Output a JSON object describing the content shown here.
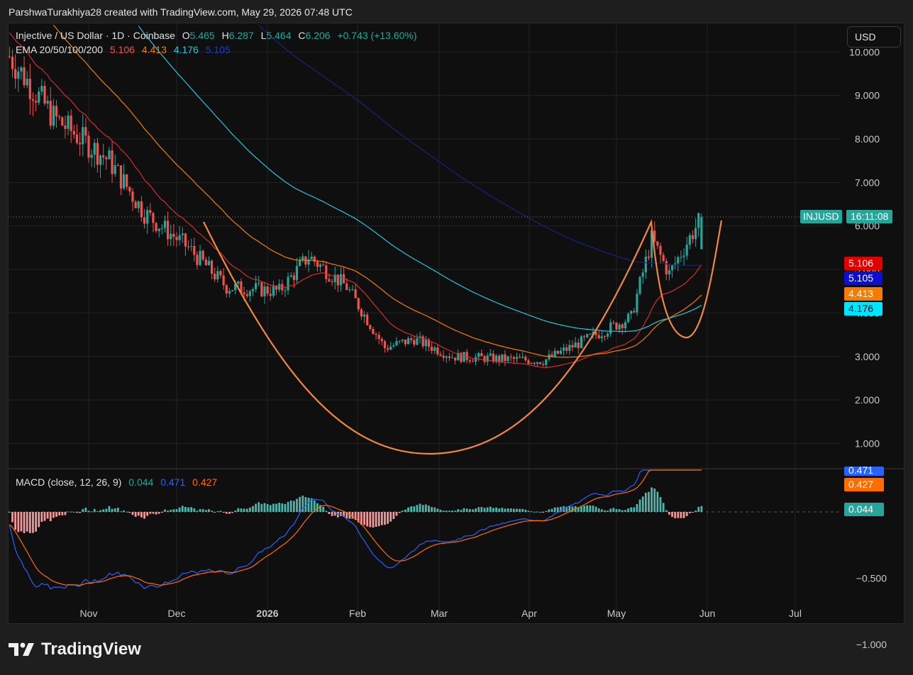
{
  "header": {
    "attribution": "ParshwaTurakhiya28 created with TradingView.com, May 29, 2026 07:48 UTC"
  },
  "legend": {
    "symbol": "Injective / US Dollar · 1D · Coinbase",
    "o_label": "O",
    "o_val": "5.465",
    "h_label": "H",
    "h_val": "6.287",
    "l_label": "L",
    "l_val": "5.464",
    "c_label": "C",
    "c_val": "6.206",
    "change": "+0.743 (+13.60%)",
    "ema_label": "EMA 20/50/100/200",
    "ema20": "5.106",
    "ema50": "4.413",
    "ema100": "4.176",
    "ema200": "5.105"
  },
  "currency_button": "USD",
  "price_tag": {
    "symbol": "INJUSD",
    "countdown": "16:11:08"
  },
  "ema_tags": [
    "5.106",
    "5.105",
    "4.413",
    "4.176"
  ],
  "macd": {
    "label": "MACD (close, 12, 26, 9)",
    "hist": "0.044",
    "macd": "0.471",
    "signal": "0.427"
  },
  "branding": {
    "name": "TradingView"
  },
  "colors": {
    "up": "#26a69a",
    "down": "#ef5350",
    "ema20": "#d32f2f",
    "ema50": "#f57c00",
    "ema100": "#26c6da",
    "ema200": "#1a237e",
    "pattern": "#f0883e",
    "macd_line": "#2962ff",
    "signal_line": "#ff6d00"
  },
  "chart_data": [
    {
      "type": "candlestick",
      "title": "Injective / US Dollar · 1D · Coinbase",
      "x_ticks": [
        "Nov",
        "Dec",
        "2026",
        "Feb",
        "Mar",
        "Apr",
        "May",
        "Jun",
        "Jul"
      ],
      "y_ticks": [
        "1.000",
        "2.000",
        "3.000",
        "4.000",
        "5.000",
        "6.000",
        "7.000",
        "8.000",
        "9.000",
        "10.000"
      ],
      "ylim": [
        0.4,
        10.3
      ],
      "last_price": 6.206,
      "series": [
        {
          "name": "EMA 20",
          "last": 5.106
        },
        {
          "name": "EMA 50",
          "last": 4.413
        },
        {
          "name": "EMA 100",
          "last": 4.176
        },
        {
          "name": "EMA 200",
          "last": 5.105
        }
      ],
      "anchors": {
        "dates": [
          "2025-10-05",
          "2025-10-20",
          "2025-11-08",
          "2025-11-20",
          "2025-12-05",
          "2025-12-18",
          "2026-01-05",
          "2026-01-15",
          "2026-01-28",
          "2026-02-10",
          "2026-02-20",
          "2026-03-05",
          "2026-03-20",
          "2026-04-05",
          "2026-04-20",
          "2026-05-05",
          "2026-05-12",
          "2026-05-18",
          "2026-05-29"
        ],
        "prices": [
          9.9,
          8.5,
          7.5,
          6.3,
          5.5,
          4.6,
          4.5,
          5.3,
          4.6,
          3.2,
          3.4,
          3.0,
          2.95,
          2.9,
          3.4,
          3.9,
          5.7,
          4.9,
          6.206
        ]
      }
    },
    {
      "type": "line",
      "title": "MACD (close, 12, 26, 9)",
      "y_ticks": [
        "0.000",
        "−0.500",
        "−1.000"
      ],
      "series": [
        {
          "name": "MACD",
          "last": 0.471
        },
        {
          "name": "Signal",
          "last": 0.427
        },
        {
          "name": "Histogram",
          "last": 0.044
        }
      ]
    }
  ]
}
